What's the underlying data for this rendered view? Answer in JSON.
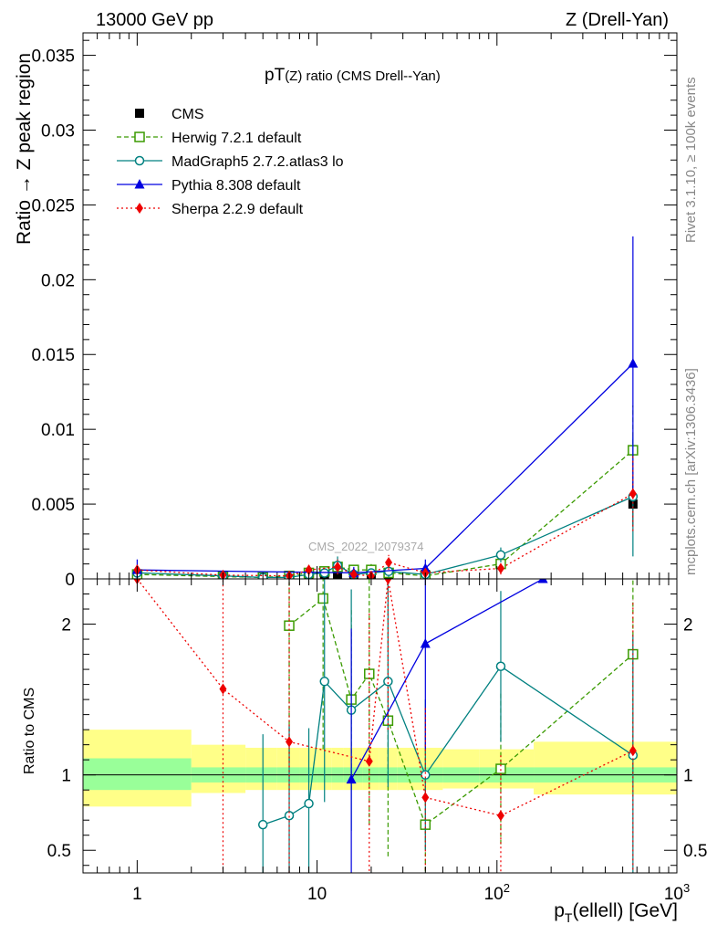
{
  "header": {
    "left": "13000 GeV pp",
    "right": "Z (Drell-Yan)"
  },
  "title_prefix": "pT",
  "title_rest": "(Z) ratio (CMS Drell--Yan)",
  "watermark": "CMS_2022_I2079374",
  "side_label_top": "Rivet 3.1.10, ≥ 100k events",
  "side_label_bottom": "mcplots.cern.ch [arXiv:1306.3436]",
  "colors": {
    "CMS": "#000000",
    "Herwig": "#3a9a00",
    "MadGraph": "#008080",
    "Pythia": "#0000e0",
    "Sherpa": "#ee0000",
    "band_inner": "#99ff99",
    "band_outer": "#ffff88"
  },
  "chart_data": [
    {
      "type": "line",
      "panel": "main",
      "ylabel": "Ratio → Z peak region",
      "xscale": "log",
      "xlim": [
        0.5,
        1000
      ],
      "ylim": [
        0,
        0.0365
      ],
      "yticks": [
        0,
        0.005,
        0.01,
        0.015,
        0.02,
        0.025,
        0.03,
        0.035
      ],
      "ytick_labels": [
        "0",
        "0.005",
        "0.01",
        "0.015",
        "0.02",
        "0.025",
        "0.03",
        "0.035"
      ],
      "legend_position": "top-left",
      "series": [
        {
          "name": "CMS",
          "key": "CMS",
          "marker": "square",
          "dash": "",
          "x": [
            1,
            3,
            5,
            7,
            9,
            11,
            13,
            16,
            20,
            25,
            40,
            105,
            570
          ],
          "y": [
            0.0003,
            0.00015,
            0.0001,
            0.0001,
            0.0002,
            0.0002,
            0.0002,
            0.0002,
            0.0002,
            0.0003,
            0.0003,
            0.001,
            0.005
          ],
          "yerr": [
            0.0002,
            0.0001,
            0.0001,
            0.0002,
            0.0002,
            0.0002,
            0.0002,
            0.0002,
            0.0002,
            0.0002,
            0.0002,
            0.0004,
            0.0015
          ]
        },
        {
          "name": "Herwig 7.2.1 default",
          "key": "Herwig",
          "marker": "open-square",
          "dash": "5,3",
          "x": [
            1,
            3,
            5,
            7,
            9,
            11,
            13,
            16,
            20,
            25,
            40,
            105,
            570
          ],
          "y": [
            0.0003,
            0.00015,
            0.0001,
            0.0002,
            0.0004,
            0.0005,
            0.0008,
            0.0006,
            0.0006,
            0.0004,
            0.0002,
            0.001,
            0.0086
          ],
          "yerr": [
            0.0003,
            0.0001,
            0.0001,
            0.0003,
            0.0003,
            0.0003,
            0.0004,
            0.0003,
            0.0004,
            0.0003,
            0.0002,
            0.0004,
            0.003
          ]
        },
        {
          "name": "MadGraph5 2.7.2.atlas3 lo",
          "key": "MadGraph",
          "marker": "open-circle",
          "dash": "",
          "x": [
            1,
            3,
            5,
            7,
            9,
            11,
            13,
            16,
            20,
            25,
            40,
            105,
            570
          ],
          "y": [
            0.0004,
            0.0002,
            0.0001,
            0.0001,
            0.0003,
            0.0004,
            0.0009,
            0.0003,
            0.0004,
            0.0005,
            0.0003,
            0.0016,
            0.0055
          ],
          "yerr": [
            0.0004,
            0.0002,
            0.0001,
            0.0002,
            0.0003,
            0.0003,
            0.0006,
            0.0003,
            0.0003,
            0.0004,
            0.0003,
            0.0005,
            0.004
          ]
        },
        {
          "name": "Pythia 8.308 default",
          "key": "Pythia",
          "marker": "triangle",
          "dash": "",
          "x": [
            1,
            16,
            40,
            570
          ],
          "y": [
            0.0006,
            0.0004,
            0.0007,
            0.0144
          ],
          "yerr": [
            0.0007,
            0.0004,
            0.0006,
            0.0085
          ]
        },
        {
          "name": "Sherpa 2.2.9 default",
          "key": "Sherpa",
          "marker": "diamond",
          "dash": "2,3",
          "x": [
            1,
            3,
            7,
            9,
            13,
            16,
            20,
            25,
            40,
            105,
            570
          ],
          "y": [
            0.0006,
            0.00025,
            0.0002,
            0.0006,
            0.0008,
            0.0003,
            0.0002,
            0.0011,
            0.0004,
            0.0007,
            0.0057
          ],
          "yerr": [
            0.0004,
            0.0002,
            0.0003,
            0.0004,
            0.0005,
            0.0003,
            0.0003,
            0.0005,
            0.0003,
            0.0004,
            0.0025
          ]
        }
      ]
    },
    {
      "type": "line",
      "panel": "ratio",
      "xlabel": "p_T(ellell) [GeV]",
      "ylabel": "Ratio to CMS",
      "xscale": "log",
      "xlim": [
        0.5,
        1000
      ],
      "ylim": [
        0.35,
        2.3
      ],
      "yticks": [
        0.5,
        1,
        2
      ],
      "ytick_labels": [
        "0.5",
        "1",
        "2"
      ],
      "xticks": [
        1,
        10,
        100,
        1000
      ],
      "xtick_labels": [
        "1",
        "10",
        "10^2",
        "10^3"
      ],
      "band_edges": [
        0.5,
        2,
        4,
        6,
        8,
        10,
        12,
        14,
        18,
        22,
        28,
        50,
        80,
        160,
        1000
      ],
      "band_inner": [
        [
          0.9,
          1.11
        ],
        [
          0.95,
          1.05
        ],
        [
          0.95,
          1.05
        ],
        [
          0.95,
          1.05
        ],
        [
          0.95,
          1.05
        ],
        [
          0.95,
          1.05
        ],
        [
          0.95,
          1.05
        ],
        [
          0.95,
          1.05
        ],
        [
          0.95,
          1.05
        ],
        [
          0.95,
          1.05
        ],
        [
          0.95,
          1.05
        ],
        [
          0.95,
          1.05
        ],
        [
          0.95,
          1.05
        ],
        [
          0.95,
          1.05
        ]
      ],
      "band_outer": [
        [
          0.79,
          1.3
        ],
        [
          0.88,
          1.2
        ],
        [
          0.9,
          1.18
        ],
        [
          0.9,
          1.18
        ],
        [
          0.9,
          1.18
        ],
        [
          0.9,
          1.18
        ],
        [
          0.9,
          1.18
        ],
        [
          0.9,
          1.18
        ],
        [
          0.9,
          1.18
        ],
        [
          0.9,
          1.18
        ],
        [
          0.9,
          1.18
        ],
        [
          0.91,
          1.17
        ],
        [
          0.91,
          1.17
        ],
        [
          0.87,
          1.22
        ]
      ],
      "series": [
        {
          "name": "Herwig 7.2.1 default",
          "key": "Herwig",
          "marker": "open-square",
          "dash": "5,3",
          "x": [
            7,
            10.8,
            15.5,
            19.5,
            24.8,
            40,
            105,
            570
          ],
          "y": [
            1.99,
            2.17,
            1.5,
            1.67,
            1.36,
            0.67,
            1.04,
            1.8
          ],
          "yerr": [
            0.9,
            1.0,
            0.6,
            1.0,
            0.9,
            0.6,
            0.5,
            0.8
          ]
        },
        {
          "name": "MadGraph5 2.7.2.atlas3 lo",
          "key": "MadGraph",
          "marker": "open-circle",
          "dash": "",
          "x": [
            5,
            7,
            9,
            11,
            15.5,
            24.8,
            40,
            105,
            570
          ],
          "y": [
            0.67,
            0.73,
            0.81,
            1.62,
            1.43,
            1.62,
            1.0,
            1.72,
            1.13
          ],
          "yerr": [
            0.6,
            0.6,
            0.5,
            0.8,
            0.8,
            0.7,
            0.5,
            0.5,
            0.8
          ]
        },
        {
          "name": "Pythia 8.308 default",
          "key": "Pythia",
          "marker": "triangle",
          "dash": "",
          "x": [
            15.5,
            40,
            180
          ],
          "y": [
            0.97,
            1.87,
            2.3
          ],
          "yerr": [
            1.0,
            0.7,
            0
          ]
        },
        {
          "name": "Sherpa 2.2.9 default",
          "key": "Sherpa",
          "marker": "diamond",
          "dash": "2,3",
          "x": [
            1,
            3,
            7,
            19.5,
            24.8,
            40,
            105,
            570
          ],
          "y": [
            2.3,
            1.57,
            1.22,
            1.09,
            2.3,
            0.85,
            0.73,
            1.16
          ],
          "yerr": [
            0,
            1.5,
            1.2,
            1.0,
            1.0,
            0.6,
            0.4,
            1.0
          ]
        }
      ]
    }
  ]
}
